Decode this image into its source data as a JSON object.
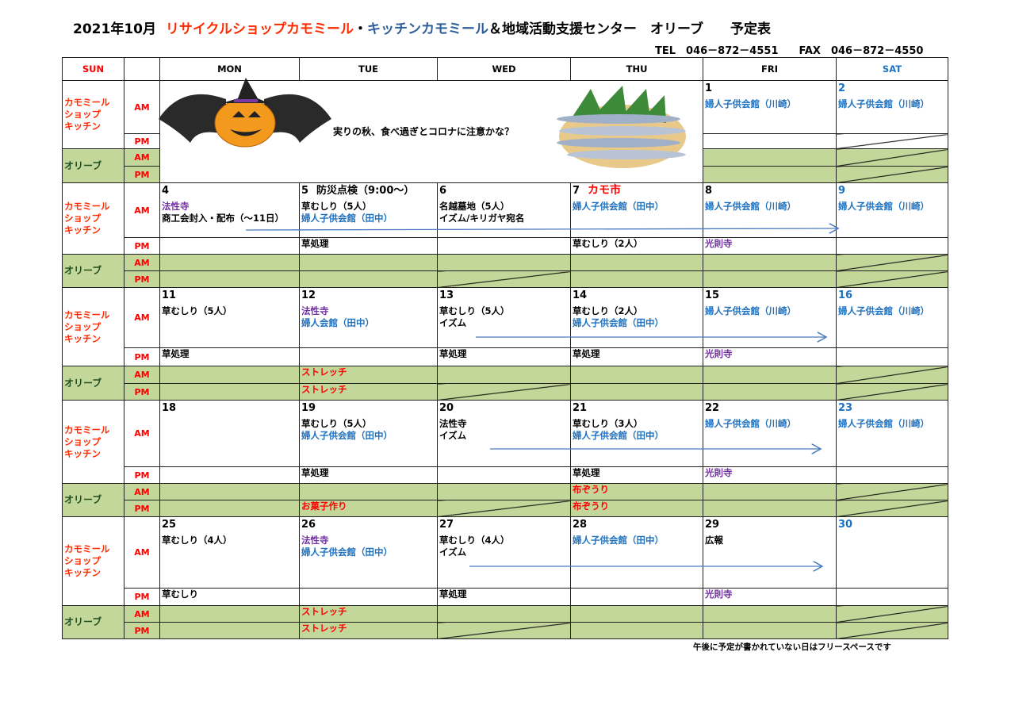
{
  "header": {
    "month": "2021年10月",
    "shop_name": "リサイクルショップカモミール",
    "separator": "・",
    "kitchen_name": "キッチンカモミール",
    "rest": "＆地域活動支援センター　オリーブ　　予定表",
    "contact": "TEL　046－872－4551　　FAX　046－872－4550"
  },
  "weekdays": [
    "SUN",
    "",
    "MON",
    "TUE",
    "WED",
    "THU",
    "FRI",
    "SAT"
  ],
  "weekday_colors": {
    "SUN": "#ff0000",
    "SAT": "#1f72c0"
  },
  "labels": {
    "camomile": "カモミール\nショップ\nキッチン",
    "olive": "オリーブ",
    "am": "AM",
    "pm": "PM"
  },
  "banner": {
    "message": "実りの秋、食べ過ぎとコロナに注意かな？",
    "images": [
      "halloween-pumpkin-bat",
      "grilled-sanma-fish"
    ]
  },
  "colors": {
    "olive_row": "#c4d79b",
    "blue": "#1f72c0",
    "purple": "#7030a0",
    "red": "#ff0000"
  },
  "weeks": [
    {
      "days": [
        null,
        null,
        null,
        null,
        {
          "day": "1",
          "am": [
            {
              "t": "婦人子供会館（川崎）",
              "c": "blue"
            }
          ],
          "pm": null
        },
        {
          "day": "2",
          "day_color": "blue",
          "am": [
            {
              "t": "婦人子供会館（川崎）",
              "c": "blue"
            }
          ],
          "pm": null,
          "pm_crossed": true,
          "olive_am_crossed": true,
          "olive_pm_crossed": true
        }
      ]
    },
    {
      "days": [
        {
          "day": "4",
          "am": [
            {
              "t": "法性寺",
              "c": "purple"
            },
            {
              "t": "商工会封入・配布（～11日）",
              "c": "black"
            }
          ]
        },
        {
          "day": "5",
          "note": "防災点検（9:00～）",
          "note_color": "black",
          "am": [
            {
              "t": "草むしり（5人）",
              "c": "black"
            },
            {
              "t": "婦人子供会館（田中）",
              "c": "blue"
            }
          ],
          "pm": {
            "t": "草処理",
            "c": "black"
          }
        },
        {
          "day": "6",
          "am": [
            {
              "t": "名越墓地（5人）",
              "c": "black"
            },
            {
              "t": "イズム/キリガヤ宛名",
              "c": "black"
            }
          ],
          "olive_pm_crossed": true
        },
        {
          "day": "7",
          "note": "カモ市",
          "note_color": "red",
          "am": [
            {
              "t": "婦人子供会館（田中）",
              "c": "blue"
            }
          ],
          "pm": {
            "t": "草むしり（2人）",
            "c": "black"
          }
        },
        {
          "day": "8",
          "am": [
            {
              "t": "婦人子供会館（川崎）",
              "c": "blue"
            }
          ],
          "pm": {
            "t": "光則寺",
            "c": "purple"
          }
        },
        {
          "day": "9",
          "day_color": "blue",
          "am": [
            {
              "t": "婦人子供会館（川崎）",
              "c": "blue"
            }
          ],
          "olive_am_crossed": true,
          "olive_pm_crossed": true
        }
      ]
    },
    {
      "days": [
        {
          "day": "11",
          "am": [
            {
              "t": "草むしり（5人）",
              "c": "black"
            }
          ],
          "pm": {
            "t": "草処理",
            "c": "black"
          }
        },
        {
          "day": "12",
          "am": [
            {
              "t": "法性寺",
              "c": "purple"
            },
            {
              "t": "婦人会館（田中）",
              "c": "blue"
            }
          ],
          "olive_am": {
            "t": "ストレッチ",
            "c": "red"
          },
          "olive_pm": {
            "t": "ストレッチ",
            "c": "red"
          }
        },
        {
          "day": "13",
          "am": [
            {
              "t": "草むしり（5人）",
              "c": "black"
            },
            {
              "t": "イズム",
              "c": "black"
            }
          ],
          "pm": {
            "t": "草処理",
            "c": "black"
          },
          "olive_pm_crossed": true
        },
        {
          "day": "14",
          "am": [
            {
              "t": "草むしり（2人）",
              "c": "black"
            },
            {
              "t": "婦人子供会館（田中）",
              "c": "blue"
            }
          ],
          "pm": {
            "t": "草処理",
            "c": "black"
          }
        },
        {
          "day": "15",
          "am": [
            {
              "t": "婦人子供会館（川崎）",
              "c": "blue"
            }
          ],
          "pm": {
            "t": "光則寺",
            "c": "purple"
          }
        },
        {
          "day": "16",
          "day_color": "blue",
          "am": [
            {
              "t": "婦人子供会館（川崎）",
              "c": "blue"
            }
          ],
          "olive_am_crossed": true,
          "olive_pm_crossed": true
        }
      ]
    },
    {
      "days": [
        {
          "day": "18",
          "am": []
        },
        {
          "day": "19",
          "am": [
            {
              "t": "草むしり（5人）",
              "c": "black"
            },
            {
              "t": "婦人子供会館（田中）",
              "c": "blue"
            }
          ],
          "pm": {
            "t": "草処理",
            "c": "black"
          },
          "olive_pm": {
            "t": "お菓子作り",
            "c": "red"
          }
        },
        {
          "day": "20",
          "am": [
            {
              "t": "法性寺",
              "c": "black"
            },
            {
              "t": "イズム",
              "c": "black"
            }
          ],
          "olive_pm_crossed": true
        },
        {
          "day": "21",
          "am": [
            {
              "t": "草むしり（3人）",
              "c": "black"
            },
            {
              "t": "婦人子供会館（田中）",
              "c": "blue"
            }
          ],
          "pm": {
            "t": "草処理",
            "c": "black"
          },
          "olive_am": {
            "t": "布ぞうり",
            "c": "red"
          },
          "olive_pm": {
            "t": "布ぞうり",
            "c": "red"
          }
        },
        {
          "day": "22",
          "am": [
            {
              "t": "婦人子供会館（川崎）",
              "c": "blue"
            }
          ],
          "pm": {
            "t": "光則寺",
            "c": "purple"
          }
        },
        {
          "day": "23",
          "day_color": "blue",
          "am": [
            {
              "t": "婦人子供会館（川崎）",
              "c": "blue"
            }
          ],
          "olive_am_crossed": true,
          "olive_pm_crossed": true
        }
      ]
    },
    {
      "days": [
        {
          "day": "25",
          "am": [
            {
              "t": "草むしり（4人）",
              "c": "black"
            }
          ],
          "pm": {
            "t": "草むしり",
            "c": "black"
          }
        },
        {
          "day": "26",
          "am": [
            {
              "t": "法性寺",
              "c": "purple"
            },
            {
              "t": "婦人子供会館（田中）",
              "c": "blue"
            }
          ],
          "olive_am": {
            "t": "ストレッチ",
            "c": "red"
          },
          "olive_pm": {
            "t": "ストレッチ",
            "c": "red"
          }
        },
        {
          "day": "27",
          "am": [
            {
              "t": "草むしり（4人）",
              "c": "black"
            },
            {
              "t": "イズム",
              "c": "black"
            }
          ],
          "pm": {
            "t": "草処理",
            "c": "black"
          },
          "olive_pm_crossed": true
        },
        {
          "day": "28",
          "am": [
            {
              "t": "婦人子供会館（田中）",
              "c": "blue"
            }
          ]
        },
        {
          "day": "29",
          "am": [
            {
              "t": "広報",
              "c": "black"
            }
          ],
          "pm": {
            "t": "光則寺",
            "c": "purple"
          }
        },
        {
          "day": "30",
          "day_color": "blue",
          "am": [],
          "olive_am_crossed": true,
          "olive_pm_crossed": true
        }
      ]
    }
  ],
  "footer_note": "午後に予定が書かれていない日はフリースペースです"
}
